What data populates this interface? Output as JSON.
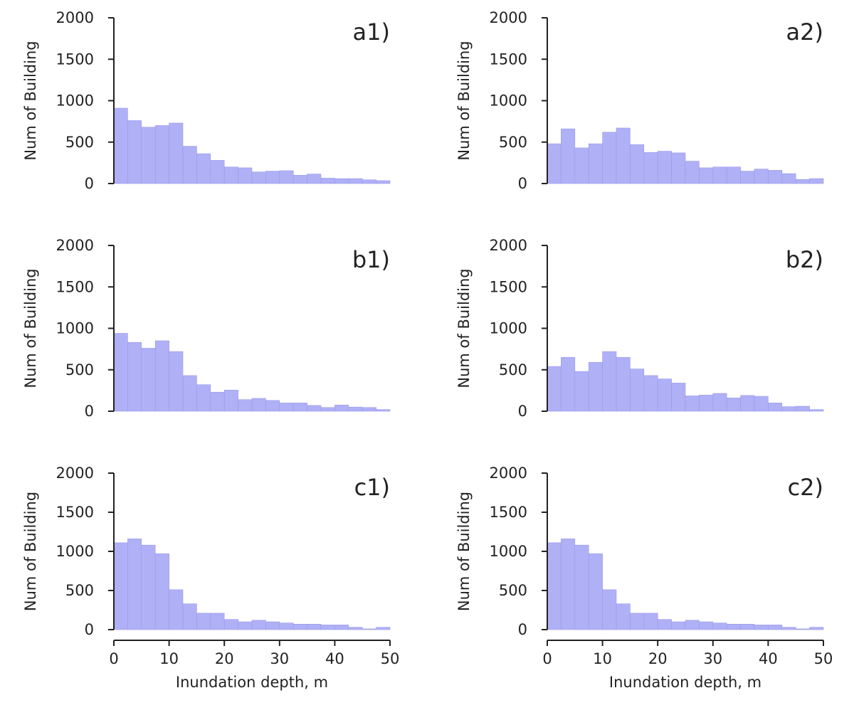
{
  "style": {
    "bar_fill": "#b0b0f7",
    "bar_edge": "#9a9ae8",
    "axis_color": "#222222"
  },
  "chart_data": [
    {
      "type": "bar",
      "panel": "a1)",
      "xlabel": "",
      "ylabel": "Num of Building",
      "xlim": [
        0,
        50
      ],
      "ylim": [
        0,
        2000
      ],
      "yticks": [
        "0",
        "500",
        "1000",
        "1500",
        "2000"
      ],
      "xticks": [],
      "bin_width": 2.5,
      "values": [
        910,
        760,
        680,
        700,
        730,
        450,
        360,
        280,
        200,
        190,
        140,
        150,
        155,
        100,
        115,
        65,
        60,
        60,
        45,
        35
      ]
    },
    {
      "type": "bar",
      "panel": "a2)",
      "xlabel": "",
      "ylabel": "Num of Building",
      "xlim": [
        0,
        50
      ],
      "ylim": [
        0,
        2000
      ],
      "yticks": [
        "0",
        "500",
        "1000",
        "1500",
        "2000"
      ],
      "xticks": [],
      "bin_width": 2.5,
      "values": [
        480,
        660,
        430,
        480,
        620,
        670,
        470,
        375,
        390,
        370,
        270,
        190,
        200,
        200,
        150,
        175,
        160,
        120,
        50,
        60
      ]
    },
    {
      "type": "bar",
      "panel": "b1)",
      "xlabel": "",
      "ylabel": "Num of Building",
      "xlim": [
        0,
        50
      ],
      "ylim": [
        0,
        2000
      ],
      "yticks": [
        "0",
        "500",
        "1000",
        "1500",
        "2000"
      ],
      "xticks": [],
      "bin_width": 2.5,
      "values": [
        940,
        830,
        760,
        850,
        720,
        430,
        320,
        230,
        255,
        140,
        155,
        130,
        100,
        100,
        70,
        45,
        75,
        50,
        45,
        20
      ]
    },
    {
      "type": "bar",
      "panel": "b2)",
      "xlabel": "",
      "ylabel": "Num of Building",
      "xlim": [
        0,
        50
      ],
      "ylim": [
        0,
        2000
      ],
      "yticks": [
        "0",
        "500",
        "1000",
        "1500",
        "2000"
      ],
      "xticks": [],
      "bin_width": 2.5,
      "values": [
        540,
        650,
        480,
        590,
        720,
        650,
        510,
        430,
        390,
        340,
        185,
        195,
        215,
        160,
        190,
        180,
        100,
        55,
        60,
        20
      ]
    },
    {
      "type": "bar",
      "panel": "c1)",
      "xlabel": "Inundation depth, m",
      "ylabel": "Num of Building",
      "xlim": [
        0,
        50
      ],
      "ylim": [
        0,
        2000
      ],
      "yticks": [
        "0",
        "500",
        "1000",
        "1500",
        "2000"
      ],
      "xticks": [
        "0",
        "10",
        "20",
        "30",
        "40",
        "50"
      ],
      "bin_width": 2.5,
      "values": [
        1110,
        1160,
        1080,
        970,
        510,
        330,
        210,
        210,
        130,
        100,
        120,
        100,
        85,
        70,
        70,
        60,
        60,
        30,
        10,
        30
      ]
    },
    {
      "type": "bar",
      "panel": "c2)",
      "xlabel": "Inundation depth, m",
      "ylabel": "Num of Building",
      "xlim": [
        0,
        50
      ],
      "ylim": [
        0,
        2000
      ],
      "yticks": [
        "0",
        "500",
        "1000",
        "1500",
        "2000"
      ],
      "xticks": [
        "0",
        "10",
        "20",
        "30",
        "40",
        "50"
      ],
      "bin_width": 2.5,
      "values": [
        1110,
        1160,
        1080,
        970,
        510,
        330,
        210,
        210,
        130,
        100,
        120,
        100,
        85,
        70,
        70,
        60,
        60,
        30,
        10,
        30
      ]
    }
  ]
}
